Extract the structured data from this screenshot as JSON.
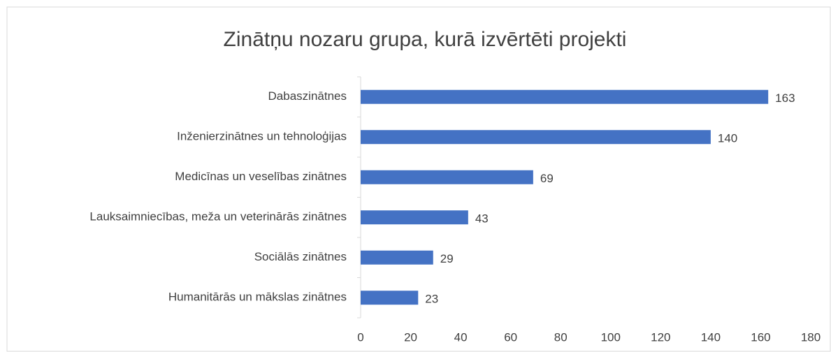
{
  "chart_data": {
    "type": "bar",
    "orientation": "horizontal",
    "title": "Zinātņu nozaru grupa, kurā izvērtēti projekti",
    "categories": [
      "Dabaszinātnes",
      "Inženierzinātnes un tehnoloģijas",
      "Medicīnas un veselības zinātnes",
      "Lauksaimniecības, meža un veterinārās zinātnes",
      "Sociālās zinātnes",
      "Humanitārās un mākslas zinātnes"
    ],
    "values": [
      163,
      140,
      69,
      43,
      29,
      23
    ],
    "color": "#4472c4",
    "xlim": [
      0,
      180
    ],
    "xticks": [
      0,
      20,
      40,
      60,
      80,
      100,
      120,
      140,
      160,
      180
    ],
    "grid": false
  }
}
